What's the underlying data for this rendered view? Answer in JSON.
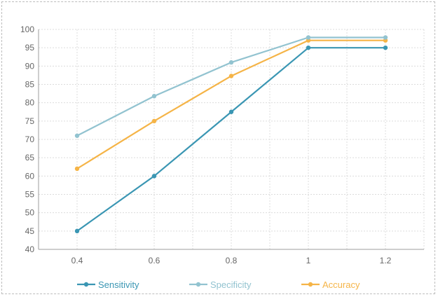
{
  "chart_data": {
    "type": "line",
    "title": "",
    "xlabel": "",
    "ylabel": "",
    "x": [
      0.4,
      0.6,
      0.8,
      1,
      1.2
    ],
    "x_tick_labels": [
      "0.4",
      "0.6",
      "0.8",
      "1",
      "1.2"
    ],
    "xlim": [
      0.3,
      1.3
    ],
    "ylim": [
      40,
      100
    ],
    "y_ticks": [
      40,
      45,
      50,
      55,
      60,
      65,
      70,
      75,
      80,
      85,
      90,
      95,
      100
    ],
    "grid": true,
    "legend_position": "bottom",
    "series": [
      {
        "name": "Sensitivity",
        "color": "#3a96b3",
        "values": [
          45,
          60,
          77.5,
          95,
          95
        ]
      },
      {
        "name": "Specificity",
        "color": "#92c3d0",
        "values": [
          71,
          81.8,
          91,
          97.8,
          97.8
        ]
      },
      {
        "name": "Accuracy",
        "color": "#f5b447",
        "values": [
          62,
          75,
          87.3,
          97,
          97
        ]
      }
    ]
  }
}
